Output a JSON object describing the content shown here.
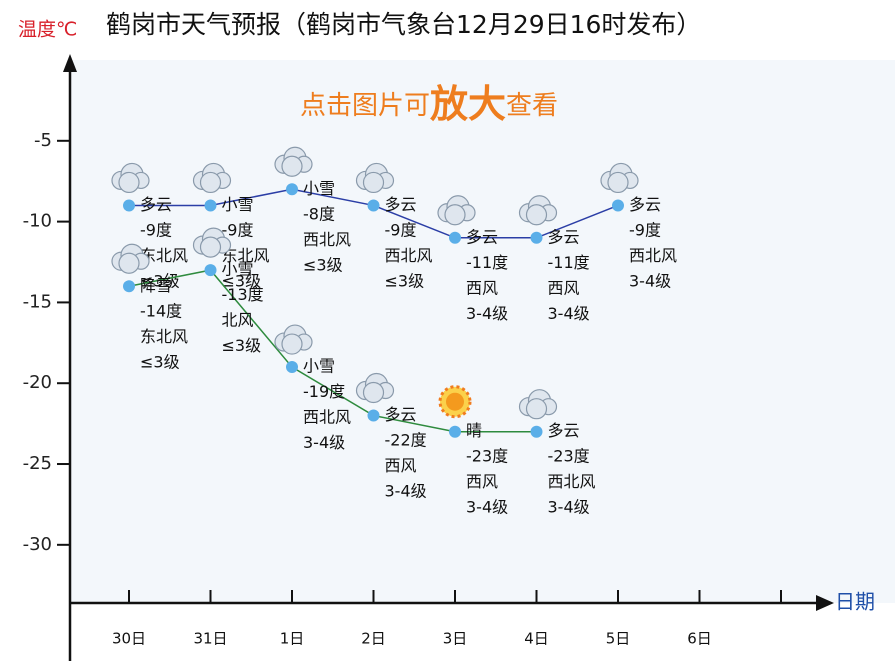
{
  "chart_data": {
    "type": "line",
    "title": "鹤岗市天气预报（鹤岗市气象台12月29日16时发布）",
    "y_label": "温度℃",
    "x_label": "日期",
    "annotation": [
      "点击图片可",
      "放大",
      "查看"
    ],
    "categories": [
      "30日",
      "31日",
      "1日",
      "2日",
      "3日",
      "4日",
      "5日",
      "6日",
      null
    ],
    "ylim": [
      -33.6,
      0
    ],
    "yticks": [
      -5,
      -10,
      -15,
      -20,
      -25,
      -30
    ],
    "series": [
      {
        "color": "#2b3ea6",
        "values": [
          -9,
          -9,
          -8,
          -9,
          -11,
          -11,
          -9,
          null,
          null
        ],
        "value_labels": [
          "-9度",
          "-9度",
          "-8度",
          "-9度",
          "-11度",
          "-11度",
          "-9度",
          null,
          null
        ],
        "weather": [
          "多云",
          "小雪",
          "小雪",
          "多云",
          "多云",
          "多云",
          "多云",
          null,
          null
        ],
        "wind_direction": [
          "东北风",
          "东北风",
          "西北风",
          "西北风",
          "西风",
          "西风",
          "西北风",
          null,
          null
        ],
        "wind_level": [
          "≤3级",
          "≤3级",
          "≤3级",
          "≤3级",
          "3-4级",
          "3-4级",
          "3-4级",
          null,
          null
        ]
      },
      {
        "color": "#2e8b3e",
        "values": [
          -14,
          -13,
          -19,
          -22,
          -23,
          -23,
          null,
          null,
          null
        ],
        "value_labels": [
          "-14度",
          "-13度",
          "-19度",
          "-22度",
          "-23度",
          "-23度",
          null,
          null,
          null
        ],
        "weather": [
          "降雪",
          "小雪",
          "小雪",
          "多云",
          "晴",
          "多云",
          null,
          null,
          null
        ],
        "wind_direction": [
          "东北风",
          "北风",
          "西北风",
          "西风",
          "西风",
          "西北风",
          null,
          null,
          null
        ],
        "wind_level": [
          "≤3级",
          "≤3级",
          "3-4级",
          "3-4级",
          "3-4级",
          "3-4级",
          null,
          null,
          null
        ]
      }
    ]
  }
}
